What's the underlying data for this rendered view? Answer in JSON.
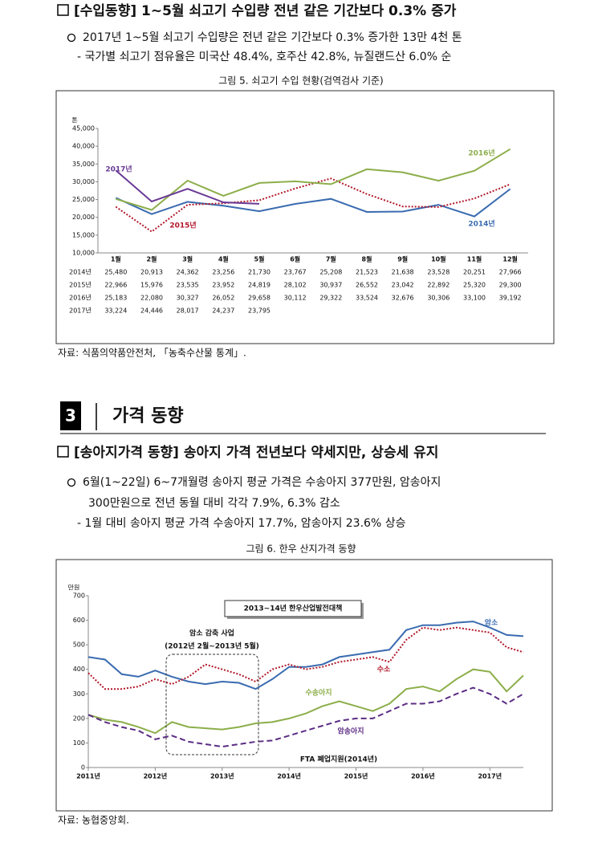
{
  "import_section": {
    "heading": "[수입동향] 1~5월 쇠고기 수입량 전년 같은 기간보다 0.3% 증가",
    "bullet": "2017년 1~5월 쇠고기 수입량은 전년 같은 기간보다 0.3% 증가한 13만 4천 톤",
    "sub": "- 국가별 쇠고기 점유율은 미국산 48.4%, 호주산 42.8%, 뉴질랜드산 6.0% 순",
    "caption": "그림 5.  쇠고기 수입 현황(검역검사 기준)",
    "source": "자료: 식품의약품안전처, 「농축수산물 통계」."
  },
  "price_section": {
    "number": "3",
    "title": "가격 동향",
    "heading": "[송아지가격 동향] 송아지 가격 전년보다 약세지만, 상승세 유지",
    "bullet_lines": [
      "6월(1~22일) 6~7개월령 송아지 평균 가격은 수송아지 377만원, 암송아지",
      "300만원으로 전년 동월 대비 각각 7.9%, 6.3% 감소"
    ],
    "sub": "- 1월 대비 송아지 평균 가격 수송아지 17.7%, 암송아지 23.6% 상승",
    "caption": "그림 6.  한우 산지가격 동향",
    "source": "자료: 농협중앙회."
  },
  "chart_data": [
    {
      "type": "line",
      "y_unit": "톤",
      "categories": [
        "1월",
        "2월",
        "3월",
        "4월",
        "5월",
        "6월",
        "7월",
        "8월",
        "9월",
        "10월",
        "11월",
        "12월"
      ],
      "ylim": [
        10000,
        45000
      ],
      "yticks": [
        {
          "value": 10000,
          "label": "10,000"
        },
        {
          "value": 15000,
          "label": "15,000"
        },
        {
          "value": 20000,
          "label": "20,000"
        },
        {
          "value": 25000,
          "label": "25,000"
        },
        {
          "value": 30000,
          "label": "30,000"
        },
        {
          "value": 35000,
          "label": "35,000"
        },
        {
          "value": 40000,
          "label": "40,000"
        },
        {
          "value": 45000,
          "label": "45,000"
        }
      ],
      "series": [
        {
          "name": "2014년",
          "color": "#3a6bb0",
          "dash": "solid",
          "values": [
            25480,
            20913,
            24362,
            23256,
            21730,
            23767,
            25208,
            21523,
            21638,
            23528,
            20251,
            27966
          ],
          "value_labels": [
            "25,480",
            "20,913",
            "24,362",
            "23,256",
            "21,730",
            "23,767",
            "25,208",
            "21,523",
            "21,638",
            "23,528",
            "20,251",
            "27,966"
          ]
        },
        {
          "name": "2015년",
          "color": "#b0182a",
          "dash": "dotted",
          "values": [
            22966,
            15976,
            23535,
            23952,
            24819,
            28102,
            30937,
            26552,
            23042,
            22892,
            25320,
            29300
          ],
          "value_labels": [
            "22,966",
            "15,976",
            "23,535",
            "23,952",
            "24,819",
            "28,102",
            "30,937",
            "26,552",
            "23,042",
            "22,892",
            "25,320",
            "29,300"
          ]
        },
        {
          "name": "2016년",
          "color": "#8cae4a",
          "dash": "solid",
          "values": [
            25183,
            22080,
            30327,
            26052,
            29658,
            30112,
            29322,
            33524,
            32676,
            30306,
            33100,
            39192
          ],
          "value_labels": [
            "25,183",
            "22,080",
            "30,327",
            "26,052",
            "29,658",
            "30,112",
            "29,322",
            "33,524",
            "32,676",
            "30,306",
            "33,100",
            "39,192"
          ]
        },
        {
          "name": "2017년",
          "color": "#6a3a95",
          "dash": "solid",
          "values": [
            33224,
            24446,
            28017,
            24237,
            23795,
            null,
            null,
            null,
            null,
            null,
            null,
            null
          ],
          "value_labels": [
            "33,224",
            "24,446",
            "28,017",
            "24,237",
            "23,795",
            null,
            null,
            null,
            null,
            null,
            null,
            null
          ]
        }
      ]
    },
    {
      "type": "line",
      "y_unit": "만원",
      "x": [
        2011,
        2011.25,
        2011.5,
        2011.75,
        2012,
        2012.25,
        2012.5,
        2012.75,
        2013,
        2013.25,
        2013.5,
        2013.75,
        2014,
        2014.25,
        2014.5,
        2014.75,
        2015,
        2015.25,
        2015.5,
        2015.75,
        2016,
        2016.25,
        2016.5,
        2016.75,
        2017,
        2017.25,
        2017.5
      ],
      "xlim": [
        2011,
        2017.5
      ],
      "xticks": [
        {
          "value": 2011,
          "label": "2011년"
        },
        {
          "value": 2012,
          "label": "2012년"
        },
        {
          "value": 2013,
          "label": "2013년"
        },
        {
          "value": 2014,
          "label": "2014년"
        },
        {
          "value": 2015,
          "label": "2015년"
        },
        {
          "value": 2016,
          "label": "2016년"
        },
        {
          "value": 2017,
          "label": "2017년"
        }
      ],
      "ylim": [
        0,
        700
      ],
      "yticks": [
        0,
        100,
        200,
        300,
        400,
        500,
        600,
        700
      ],
      "annotations": {
        "policy": "2013~14년 한우산업발전대책",
        "reduction": "암소 감축 사업",
        "reduction_period": "(2012년 2월~2013년 5월)",
        "fta": "FTA 폐업지원(2014년)"
      },
      "series": [
        {
          "name": "암소",
          "color": "#3a6bb0",
          "dash": "solid",
          "values": [
            450,
            440,
            380,
            370,
            395,
            370,
            350,
            340,
            350,
            345,
            320,
            360,
            410,
            410,
            420,
            450,
            460,
            470,
            480,
            560,
            580,
            580,
            590,
            595,
            570,
            540,
            535
          ]
        },
        {
          "name": "수소",
          "color": "#b0182a",
          "dash": "dotted",
          "values": [
            385,
            320,
            320,
            330,
            360,
            340,
            370,
            420,
            400,
            380,
            350,
            400,
            420,
            400,
            410,
            430,
            440,
            450,
            430,
            520,
            570,
            560,
            570,
            560,
            550,
            490,
            470
          ]
        },
        {
          "name": "수송아지",
          "color": "#8cae4a",
          "dash": "solid",
          "values": [
            215,
            195,
            185,
            165,
            140,
            185,
            165,
            160,
            155,
            165,
            180,
            185,
            200,
            220,
            250,
            270,
            250,
            230,
            260,
            320,
            330,
            310,
            360,
            400,
            390,
            310,
            375
          ]
        },
        {
          "name": "암송아지",
          "color": "#5b2c84",
          "dash": "dashed",
          "values": [
            215,
            185,
            165,
            150,
            115,
            130,
            105,
            95,
            85,
            95,
            105,
            110,
            130,
            150,
            170,
            190,
            200,
            200,
            230,
            260,
            260,
            270,
            300,
            325,
            300,
            260,
            300
          ]
        }
      ]
    }
  ]
}
